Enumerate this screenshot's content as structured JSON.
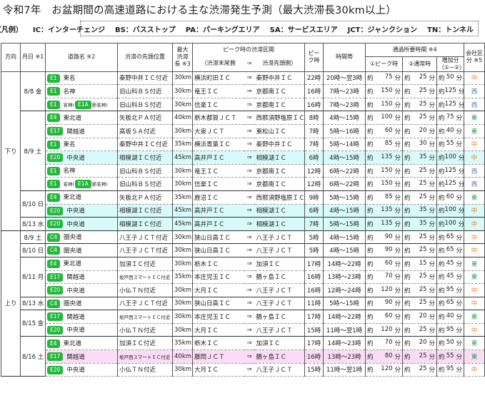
{
  "title": "令和7年　お盆期間の高速道路における主な渋滞発生予測（最大渋滞長30km以上）",
  "legend": [
    "（凡例）",
    "IC：インターチェンジ",
    "BS：バスストップ",
    "PA：パーキングエリア",
    "SA：サービスエリア",
    "JCT：ジャンクション",
    "TN：トンネル"
  ],
  "header": {
    "direction": "方向",
    "date": "月日 ※1",
    "road": "道路名 ※2",
    "head": "渋滞の先頭位置",
    "max": "最大渋滞長 ※3",
    "section": "ピーク時の渋滞区間",
    "section_from": "（渋滞末尾側",
    "section_arrow": "⇒",
    "section_to": "渋滞先頭側）",
    "peak": "ピーク時",
    "span": "時間帯",
    "travel": "通過所要時間 ※4",
    "t1": "①ピーク時",
    "t2": "②通常時",
    "t3": "増加分（①−②）",
    "company": "会社区分 ※5"
  },
  "labels": {
    "about": "約",
    "min": "分",
    "arrow": "⇒"
  },
  "colors": {
    "badge": "#22b83a",
    "中": "#e8832a",
    "西": "#4a78b8",
    "東": "#2a9a4a",
    "highlight_cyan": "#d8fafa",
    "highlight_pink": "#fbdcf6"
  },
  "directions": [
    {
      "label": "下り",
      "groups": [
        {
          "date": "8/8 金",
          "rows": [
            {
              "code": "E1",
              "road": "東名",
              "head": "秦野中井ＩＣ付近",
              "max": "30km",
              "from": "横浜町田ＩＣ",
              "to": "秦野中井ＩＣ",
              "peak": "22時",
              "span": "20時～翌3時",
              "t1": "75",
              "t2": "25",
              "t3": "50",
              "company": "中"
            },
            {
              "code": "E1",
              "road": "名神",
              "head": "旧山科ＢＳ付近",
              "max": "30km",
              "from": "竜王ＩＣ",
              "to": "京都南ＩＣ",
              "peak": "16時",
              "span": "7時～23時",
              "t1": "150",
              "t2": "25",
              "t3": "125",
              "company": "西"
            },
            {
              "code": "E1",
              "road": "名神(",
              "sub_code": "E1A",
              "sub_name": "新名神)",
              "head": "旧山科ＢＳ付近",
              "max": "30km",
              "from": "信楽ＩＣ",
              "to": "京都南ＩＣ",
              "peak": "16時",
              "span": "7時～23時",
              "t1": "150",
              "t2": "25",
              "t3": "125",
              "company": "西"
            }
          ]
        },
        {
          "date": "8/9 土",
          "rows": [
            {
              "code": "E4",
              "road": "東北道",
              "head": "矢板北ＰＡ付近",
              "max": "40km",
              "from": "栃木都賀ＪＣＴ",
              "to": "西那須野塩原ＩＣ",
              "peak": "8時",
              "span": "4時～15時",
              "t1": "100",
              "t2": "25",
              "t3": "75",
              "company": "東"
            },
            {
              "code": "E17",
              "road": "関越道",
              "head": "高坂ＳＡ付近",
              "max": "30km",
              "from": "大泉ＪＣＴ",
              "to": "東松山ＩＣ",
              "peak": "7時",
              "span": "5時～16時",
              "t1": "60",
              "t2": "20",
              "t3": "40",
              "company": "東"
            },
            {
              "code": "E1",
              "road": "東名",
              "head": "秦野中井ＩＣ付近",
              "max": "35km",
              "from": "横浜青葉ＩＣ",
              "to": "秦野中井ＩＣ",
              "peak": "7時",
              "span": "5時～14時",
              "t1": "85",
              "t2": "30",
              "t3": "55",
              "company": "中"
            },
            {
              "code": "E20",
              "road": "中央道",
              "head": "相模湖ＩＣ付近",
              "max": "45km",
              "from": "高井戸ＩＣ",
              "to": "相模湖ＩＣ",
              "peak": "6時",
              "span": "4時～15時",
              "t1": "135",
              "t2": "35",
              "t3": "100",
              "company": "中",
              "highlight": "cyan"
            },
            {
              "code": "E1",
              "road": "名神",
              "head": "旧山科ＢＳ付近",
              "max": "30km",
              "from": "竜王ＩＣ",
              "to": "京都南ＩＣ",
              "peak": "12時",
              "span": "6時～22時",
              "t1": "150",
              "t2": "25",
              "t3": "125",
              "company": "西"
            },
            {
              "code": "E1",
              "road": "名神(",
              "sub_code": "E1A",
              "sub_name": "新名神)",
              "head": "旧山科ＢＳ付近",
              "max": "30km",
              "from": "信楽ＩＣ",
              "to": "京都南ＩＣ",
              "peak": "12時",
              "span": "6時～22時",
              "t1": "150",
              "t2": "25",
              "t3": "125",
              "company": "西"
            }
          ]
        },
        {
          "date": "8/10 日",
          "rows": [
            {
              "code": "E4",
              "road": "東北道",
              "head": "矢板北ＰＡ付近",
              "max": "35km",
              "from": "鹿沼ＩＣ",
              "to": "西那須野塩原ＩＣ",
              "peak": "9時",
              "span": "5時～15時",
              "t1": "85",
              "t2": "25",
              "t3": "60",
              "company": "東"
            },
            {
              "code": "E20",
              "road": "中央道",
              "head": "相模湖ＩＣ付近",
              "max": "45km",
              "from": "高井戸ＩＣ",
              "to": "相模湖ＩＣ",
              "peak": "6時",
              "span": "4時～15時",
              "t1": "135",
              "t2": "35",
              "t3": "100",
              "company": "中",
              "highlight": "cyan"
            }
          ]
        },
        {
          "date": "8/13 水",
          "rows": [
            {
              "code": "E20",
              "road": "中央道",
              "head": "相模湖ＩＣ付近",
              "max": "45km",
              "from": "高井戸ＩＣ",
              "to": "相模湖ＩＣ",
              "peak": "7時",
              "span": "5時～15時",
              "t1": "135",
              "t2": "35",
              "t3": "100",
              "company": "中",
              "highlight": "cyan"
            }
          ]
        }
      ]
    },
    {
      "label": "上り",
      "groups": [
        {
          "date": "8/9 土",
          "rows": [
            {
              "code": "C4",
              "road": "圏央道",
              "head": "八王子ＪＣＴ付近",
              "max": "30km",
              "from": "狭山日高ＩＣ",
              "to": "八王子ＪＣＴ",
              "peak": "5時",
              "span": "4時～15時",
              "t1": "90",
              "t2": "25",
              "t3": "65",
              "company": "中"
            }
          ]
        },
        {
          "date": "8/10 日",
          "rows": [
            {
              "code": "C4",
              "road": "圏央道",
              "head": "八王子ＪＣＴ付近",
              "max": "30km",
              "from": "狭山日高ＩＣ",
              "to": "八王子ＪＣＴ",
              "peak": "5時",
              "span": "4時～15時",
              "t1": "90",
              "t2": "25",
              "t3": "65",
              "company": "中"
            }
          ]
        },
        {
          "date": "8/11 月",
          "rows": [
            {
              "code": "E4",
              "road": "東北道",
              "head": "加須ＩＣ付近",
              "max": "30km",
              "from": "栃木ＩＣ",
              "to": "加須ＩＣ",
              "peak": "17時",
              "span": "14時～22時",
              "t1": "60",
              "t2": "15",
              "t3": "45",
              "company": "東"
            },
            {
              "code": "E17",
              "road": "関越道",
              "head": "坂戸西スマートＩＣ付近",
              "head_small": true,
              "max": "35km",
              "from": "本庄児玉ＩＣ",
              "to": "鶴ヶ島ＩＣ",
              "peak": "16時",
              "span": "13時～23時",
              "t1": "70",
              "t2": "25",
              "t3": "45",
              "company": "東"
            },
            {
              "code": "E20",
              "road": "中央道",
              "head": "小仏ＴＮ付近",
              "max": "30km",
              "from": "大月ＩＣ",
              "to": "八王子ＪＣＴ",
              "peak": "16時",
              "span": "12時～24時",
              "t1": "120",
              "t2": "25",
              "t3": "95",
              "company": "中"
            }
          ]
        },
        {
          "date": "8/13 水",
          "rows": [
            {
              "code": "C4",
              "road": "圏央道",
              "head": "八王子ＪＣＴ付近",
              "max": "30km",
              "from": "狭山日高ＩＣ",
              "to": "八王子ＪＣＴ",
              "peak": "11時",
              "span": "5時～15時",
              "t1": "90",
              "t2": "25",
              "t3": "65",
              "company": "中"
            }
          ]
        },
        {
          "date": "8/15 金",
          "rows": [
            {
              "code": "E17",
              "road": "関越道",
              "head": "坂戸西スマートＩＣ付近",
              "head_small": true,
              "max": "30km",
              "from": "本庄児玉ＩＣ",
              "to": "鶴ヶ島ＩＣ",
              "peak": "17時",
              "span": "14時～22時",
              "t1": "60",
              "t2": "20",
              "t3": "40",
              "company": "東"
            },
            {
              "code": "E20",
              "road": "中央道",
              "head": "小仏ＴＮ付近",
              "max": "30km",
              "from": "大月ＩＣ",
              "to": "八王子ＪＣＴ",
              "peak": "15時",
              "span": "11時～翌1時",
              "t1": "120",
              "t2": "25",
              "t3": "95",
              "company": "中"
            }
          ]
        },
        {
          "date": "8/16 土",
          "rows": [
            {
              "code": "E4",
              "road": "東北道",
              "head": "加須ＩＣ付近",
              "max": "35km",
              "from": "栃木ＩＣ",
              "to": "加須ＩＣ",
              "peak": "17時",
              "span": "14時～23時",
              "t1": "70",
              "t2": "20",
              "t3": "50",
              "company": "東"
            },
            {
              "code": "E17",
              "road": "関越道",
              "head": "坂戸西スマートＩＣ付近",
              "head_small": true,
              "max": "40km",
              "from": "藤岡ＪＣＴ",
              "to": "鶴ヶ島ＩＣ",
              "peak": "16時",
              "span": "13時～23時",
              "t1": "80",
              "t2": "25",
              "t3": "55",
              "company": "東",
              "highlight": "pink"
            },
            {
              "code": "E20",
              "road": "中央道",
              "head": "小仏ＴＮ付近",
              "max": "30km",
              "from": "大月ＩＣ",
              "to": "八王子ＪＣＴ",
              "peak": "15時",
              "span": "11時～翌1時",
              "t1": "120",
              "t2": "25",
              "t3": "95",
              "company": "中"
            }
          ]
        }
      ]
    }
  ]
}
